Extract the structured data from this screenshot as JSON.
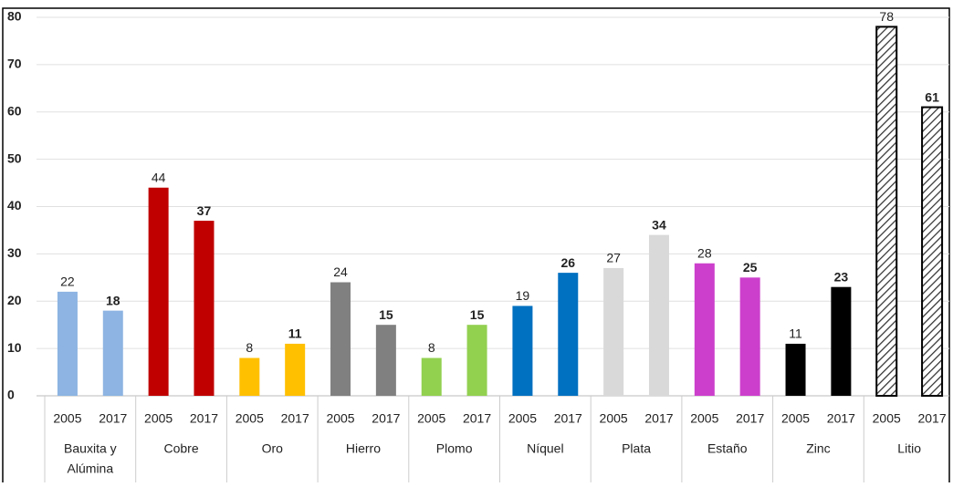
{
  "chart_data": {
    "type": "grouped_bar",
    "groups": [
      [
        "Bauxita y",
        "Alúmina"
      ],
      [
        "Cobre"
      ],
      [
        "Oro"
      ],
      [
        "Hierro"
      ],
      [
        "Plomo"
      ],
      [
        "Níquel"
      ],
      [
        "Plata"
      ],
      [
        "Estaño"
      ],
      [
        "Zinc"
      ],
      [
        "Litio"
      ]
    ],
    "group_colors": [
      "#8db4e2",
      "#c00000",
      "#ffc000",
      "#808080",
      "#92d050",
      "#0070c0",
      "#d9d9d9",
      "#cc3fcc",
      "#000000",
      "#ffffff"
    ],
    "group_hatched": [
      false,
      false,
      false,
      false,
      false,
      false,
      false,
      false,
      false,
      true
    ],
    "series": [
      {
        "name": "2005",
        "bold_labels": false,
        "values": [
          22,
          44,
          8,
          24,
          8,
          19,
          27,
          28,
          11,
          78
        ]
      },
      {
        "name": "2017",
        "bold_labels": true,
        "values": [
          18,
          37,
          11,
          15,
          15,
          26,
          34,
          25,
          23,
          61
        ]
      }
    ],
    "ylim": [
      0,
      80
    ],
    "yticks": [
      0,
      10,
      20,
      30,
      40,
      50,
      60,
      70,
      80
    ],
    "grid": true
  }
}
